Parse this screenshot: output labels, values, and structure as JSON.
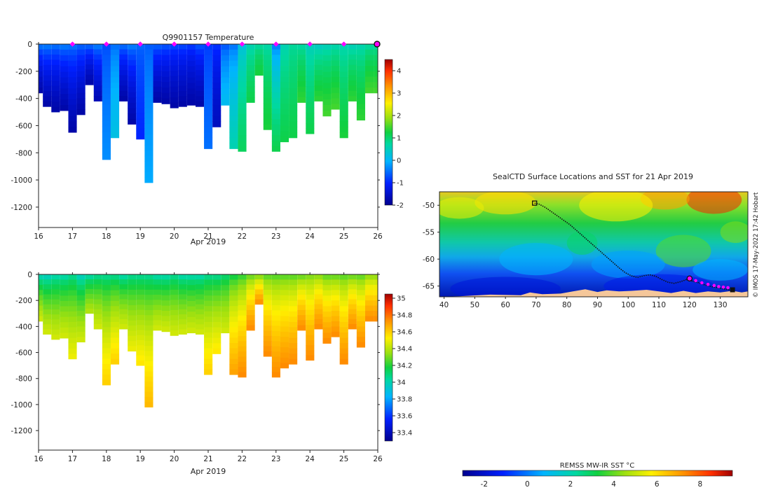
{
  "chart_data": [
    {
      "type": "heatmap",
      "title": "Q9901157  Temperature",
      "xlabel": "Apr 2019",
      "ylabel": "",
      "xlim": [
        16,
        26
      ],
      "ylim": [
        -1350,
        0
      ],
      "x_ticks": [
        16,
        17,
        18,
        19,
        20,
        21,
        22,
        23,
        24,
        25,
        26
      ],
      "y_ticks": [
        0,
        -200,
        -400,
        -600,
        -800,
        -1000,
        -1200
      ],
      "colorbar": {
        "min": -2,
        "max": 4.5,
        "ticks": [
          4,
          3,
          2,
          1,
          0,
          -1,
          -2
        ]
      },
      "surface_markers_x": [
        17,
        18,
        19,
        20,
        21,
        22,
        23,
        24,
        25
      ],
      "last_profile_marker_x": 26,
      "profiles": [
        {
          "x": 16.0,
          "depth": 360,
          "top": -0.2,
          "bottom": -1.8
        },
        {
          "x": 16.25,
          "depth": 460,
          "top": -0.2,
          "bottom": -1.8
        },
        {
          "x": 16.5,
          "depth": 500,
          "top": -0.3,
          "bottom": -1.8
        },
        {
          "x": 16.75,
          "depth": 490,
          "top": -0.2,
          "bottom": -1.8
        },
        {
          "x": 17.0,
          "depth": 650,
          "top": -0.3,
          "bottom": -1.8
        },
        {
          "x": 17.25,
          "depth": 520,
          "top": -0.4,
          "bottom": -1.8
        },
        {
          "x": 17.5,
          "depth": 300,
          "top": -0.3,
          "bottom": -1.8
        },
        {
          "x": 17.75,
          "depth": 420,
          "top": -0.2,
          "bottom": -1.7
        },
        {
          "x": 18.0,
          "depth": 850,
          "top": -0.8,
          "bottom": -0.3
        },
        {
          "x": 18.25,
          "depth": 690,
          "top": -0.6,
          "bottom": 0.2
        },
        {
          "x": 18.5,
          "depth": 420,
          "top": -0.3,
          "bottom": -1.8
        },
        {
          "x": 18.75,
          "depth": 590,
          "top": -0.2,
          "bottom": -1.8
        },
        {
          "x": 19.0,
          "depth": 700,
          "top": -0.5,
          "bottom": -1.0
        },
        {
          "x": 19.25,
          "depth": 1020,
          "top": -0.7,
          "bottom": -0.1
        },
        {
          "x": 19.5,
          "depth": 430,
          "top": -0.4,
          "bottom": -1.8
        },
        {
          "x": 19.75,
          "depth": 440,
          "top": -0.5,
          "bottom": -1.8
        },
        {
          "x": 20.0,
          "depth": 470,
          "top": -0.6,
          "bottom": -1.8
        },
        {
          "x": 20.25,
          "depth": 460,
          "top": -0.6,
          "bottom": -1.8
        },
        {
          "x": 20.5,
          "depth": 450,
          "top": -0.7,
          "bottom": -1.8
        },
        {
          "x": 20.75,
          "depth": 460,
          "top": -0.5,
          "bottom": -1.8
        },
        {
          "x": 21.0,
          "depth": 770,
          "top": -0.9,
          "bottom": -0.5
        },
        {
          "x": 21.25,
          "depth": 610,
          "top": -0.8,
          "bottom": -1.6
        },
        {
          "x": 21.5,
          "depth": 450,
          "top": -0.8,
          "bottom": 0.1
        },
        {
          "x": 21.75,
          "depth": 770,
          "top": -0.6,
          "bottom": 0.6
        },
        {
          "x": 22.0,
          "depth": 790,
          "top": 0.1,
          "bottom": 1.1
        },
        {
          "x": 22.25,
          "depth": 430,
          "top": 0.5,
          "bottom": 1.2
        },
        {
          "x": 22.5,
          "depth": 230,
          "top": 0.6,
          "bottom": 1.3
        },
        {
          "x": 22.75,
          "depth": 630,
          "top": 0.6,
          "bottom": 1.3
        },
        {
          "x": 23.0,
          "depth": 790,
          "top": -0.6,
          "bottom": 1.2
        },
        {
          "x": 23.25,
          "depth": 720,
          "top": 0.5,
          "bottom": 1.2
        },
        {
          "x": 23.5,
          "depth": 690,
          "top": 0.7,
          "bottom": 1.2
        },
        {
          "x": 23.75,
          "depth": 430,
          "top": 0.6,
          "bottom": 1.4
        },
        {
          "x": 24.0,
          "depth": 660,
          "top": 0.4,
          "bottom": 1.2
        },
        {
          "x": 24.25,
          "depth": 420,
          "top": 0.3,
          "bottom": 1.4
        },
        {
          "x": 24.5,
          "depth": 530,
          "top": 0.4,
          "bottom": 1.5
        },
        {
          "x": 24.75,
          "depth": 480,
          "top": 0.5,
          "bottom": 1.5
        },
        {
          "x": 25.0,
          "depth": 690,
          "top": 0.5,
          "bottom": 1.3
        },
        {
          "x": 25.25,
          "depth": 420,
          "top": 0.4,
          "bottom": 1.4
        },
        {
          "x": 25.5,
          "depth": 560,
          "top": 0.5,
          "bottom": 1.4
        },
        {
          "x": 25.75,
          "depth": 360,
          "top": 0.6,
          "bottom": 1.5
        },
        {
          "x": 26.0,
          "depth": 360,
          "top": 0.6,
          "bottom": 1.5
        }
      ]
    },
    {
      "type": "heatmap",
      "title": "",
      "xlabel": "Apr 2019",
      "ylabel": "",
      "xlim": [
        16,
        26
      ],
      "ylim": [
        -1350,
        0
      ],
      "x_ticks": [
        16,
        17,
        18,
        19,
        20,
        21,
        22,
        23,
        24,
        25,
        26
      ],
      "y_ticks": [
        0,
        -200,
        -400,
        -600,
        -800,
        -1000,
        -1200
      ],
      "colorbar": {
        "min": 33.3,
        "max": 35.05,
        "ticks": [
          35,
          34.8,
          34.6,
          34.4,
          34.2,
          34,
          33.8,
          33.6,
          33.4
        ]
      },
      "profiles": [
        {
          "x": 16.0,
          "top": 33.9,
          "bottom": 34.45
        },
        {
          "x": 16.25,
          "top": 33.9,
          "bottom": 34.45
        },
        {
          "x": 16.5,
          "top": 33.95,
          "bottom": 34.45
        },
        {
          "x": 16.75,
          "top": 33.95,
          "bottom": 34.45
        },
        {
          "x": 17.0,
          "top": 34.0,
          "bottom": 34.5
        },
        {
          "x": 17.25,
          "top": 33.9,
          "bottom": 34.45
        },
        {
          "x": 17.5,
          "top": 33.95,
          "bottom": 34.4
        },
        {
          "x": 17.75,
          "top": 34.0,
          "bottom": 34.45
        },
        {
          "x": 18.0,
          "top": 34.0,
          "bottom": 34.6
        },
        {
          "x": 18.25,
          "top": 34.0,
          "bottom": 34.6
        },
        {
          "x": 18.5,
          "top": 33.95,
          "bottom": 34.45
        },
        {
          "x": 18.75,
          "top": 34.0,
          "bottom": 34.5
        },
        {
          "x": 19.0,
          "top": 34.0,
          "bottom": 34.55
        },
        {
          "x": 19.25,
          "top": 34.0,
          "bottom": 34.65
        },
        {
          "x": 19.5,
          "top": 33.95,
          "bottom": 34.45
        },
        {
          "x": 19.75,
          "top": 33.95,
          "bottom": 34.45
        },
        {
          "x": 20.0,
          "top": 34.0,
          "bottom": 34.45
        },
        {
          "x": 20.25,
          "top": 33.95,
          "bottom": 34.45
        },
        {
          "x": 20.5,
          "top": 33.95,
          "bottom": 34.45
        },
        {
          "x": 20.75,
          "top": 33.95,
          "bottom": 34.45
        },
        {
          "x": 21.0,
          "top": 34.0,
          "bottom": 34.6
        },
        {
          "x": 21.25,
          "top": 34.0,
          "bottom": 34.55
        },
        {
          "x": 21.5,
          "top": 34.05,
          "bottom": 34.45
        },
        {
          "x": 21.75,
          "top": 34.1,
          "bottom": 34.7
        },
        {
          "x": 22.0,
          "top": 34.15,
          "bottom": 34.75
        },
        {
          "x": 22.25,
          "top": 34.2,
          "bottom": 34.75
        },
        {
          "x": 22.5,
          "top": 34.2,
          "bottom": 34.75
        },
        {
          "x": 22.75,
          "top": 34.2,
          "bottom": 34.75
        },
        {
          "x": 23.0,
          "top": 34.2,
          "bottom": 34.75
        },
        {
          "x": 23.25,
          "top": 34.2,
          "bottom": 34.75
        },
        {
          "x": 23.5,
          "top": 34.2,
          "bottom": 34.75
        },
        {
          "x": 23.75,
          "top": 34.2,
          "bottom": 34.75
        },
        {
          "x": 24.0,
          "top": 34.25,
          "bottom": 34.75
        },
        {
          "x": 24.25,
          "top": 34.25,
          "bottom": 34.75
        },
        {
          "x": 24.5,
          "top": 34.2,
          "bottom": 34.75
        },
        {
          "x": 24.75,
          "top": 34.2,
          "bottom": 34.75
        },
        {
          "x": 25.0,
          "top": 34.2,
          "bottom": 34.75
        },
        {
          "x": 25.25,
          "top": 34.2,
          "bottom": 34.75
        },
        {
          "x": 25.5,
          "top": 34.2,
          "bottom": 34.75
        },
        {
          "x": 25.75,
          "top": 34.25,
          "bottom": 34.75
        },
        {
          "x": 26.0,
          "top": 34.25,
          "bottom": 34.75
        }
      ]
    },
    {
      "type": "heatmap",
      "title": "SealCTD Surface Locations and SST for 21 Apr 2019",
      "xlabel": "",
      "ylabel": "",
      "xlim": [
        38.5,
        139
      ],
      "ylim": [
        -67,
        -47.5
      ],
      "x_ticks": [
        40,
        50,
        60,
        70,
        80,
        90,
        100,
        110,
        120,
        130
      ],
      "y_ticks": [
        -50,
        -55,
        -60,
        -65
      ],
      "side_label": "© IMOS 17-May-2022 17:42 Hobart",
      "colorbar": {
        "label": "REMSS MW-IR SST °C",
        "min": -3,
        "max": 9.5,
        "ticks": [
          -2,
          0,
          2,
          4,
          6,
          8
        ]
      },
      "track": [
        [
          69.5,
          -49.6
        ],
        [
          71,
          -49.8
        ],
        [
          73,
          -50.4
        ],
        [
          75,
          -51.2
        ],
        [
          77,
          -52.0
        ],
        [
          79,
          -52.8
        ],
        [
          81,
          -53.6
        ],
        [
          83,
          -54.6
        ],
        [
          85,
          -55.6
        ],
        [
          87,
          -56.6
        ],
        [
          89,
          -57.6
        ],
        [
          91,
          -58.6
        ],
        [
          93,
          -59.6
        ],
        [
          95,
          -60.6
        ],
        [
          97,
          -61.6
        ],
        [
          99,
          -62.5
        ],
        [
          101,
          -63.1
        ],
        [
          103,
          -63.4
        ],
        [
          105,
          -63.1
        ],
        [
          107,
          -62.9
        ],
        [
          109,
          -63.2
        ],
        [
          111,
          -63.8
        ],
        [
          113,
          -64.3
        ],
        [
          115,
          -64.5
        ],
        [
          117,
          -64.2
        ],
        [
          119,
          -63.8
        ],
        [
          121,
          -64.1
        ],
        [
          123,
          -64.4
        ],
        [
          125,
          -64.8
        ],
        [
          127,
          -65.1
        ],
        [
          129,
          -65.3
        ],
        [
          131,
          -65.5
        ],
        [
          133,
          -65.7
        ],
        [
          134,
          -65.7
        ]
      ],
      "track_start": [
        69.5,
        -49.6
      ],
      "track_end": [
        134,
        -65.7
      ],
      "surface_locations": [
        [
          120,
          -63.6
        ],
        [
          122,
          -64.0
        ],
        [
          124,
          -64.4
        ],
        [
          126,
          -64.7
        ],
        [
          128,
          -64.9
        ],
        [
          129.5,
          -65.1
        ],
        [
          131,
          -65.2
        ],
        [
          132.5,
          -65.3
        ]
      ],
      "current_location": [
        120,
        -63.6
      ]
    }
  ]
}
